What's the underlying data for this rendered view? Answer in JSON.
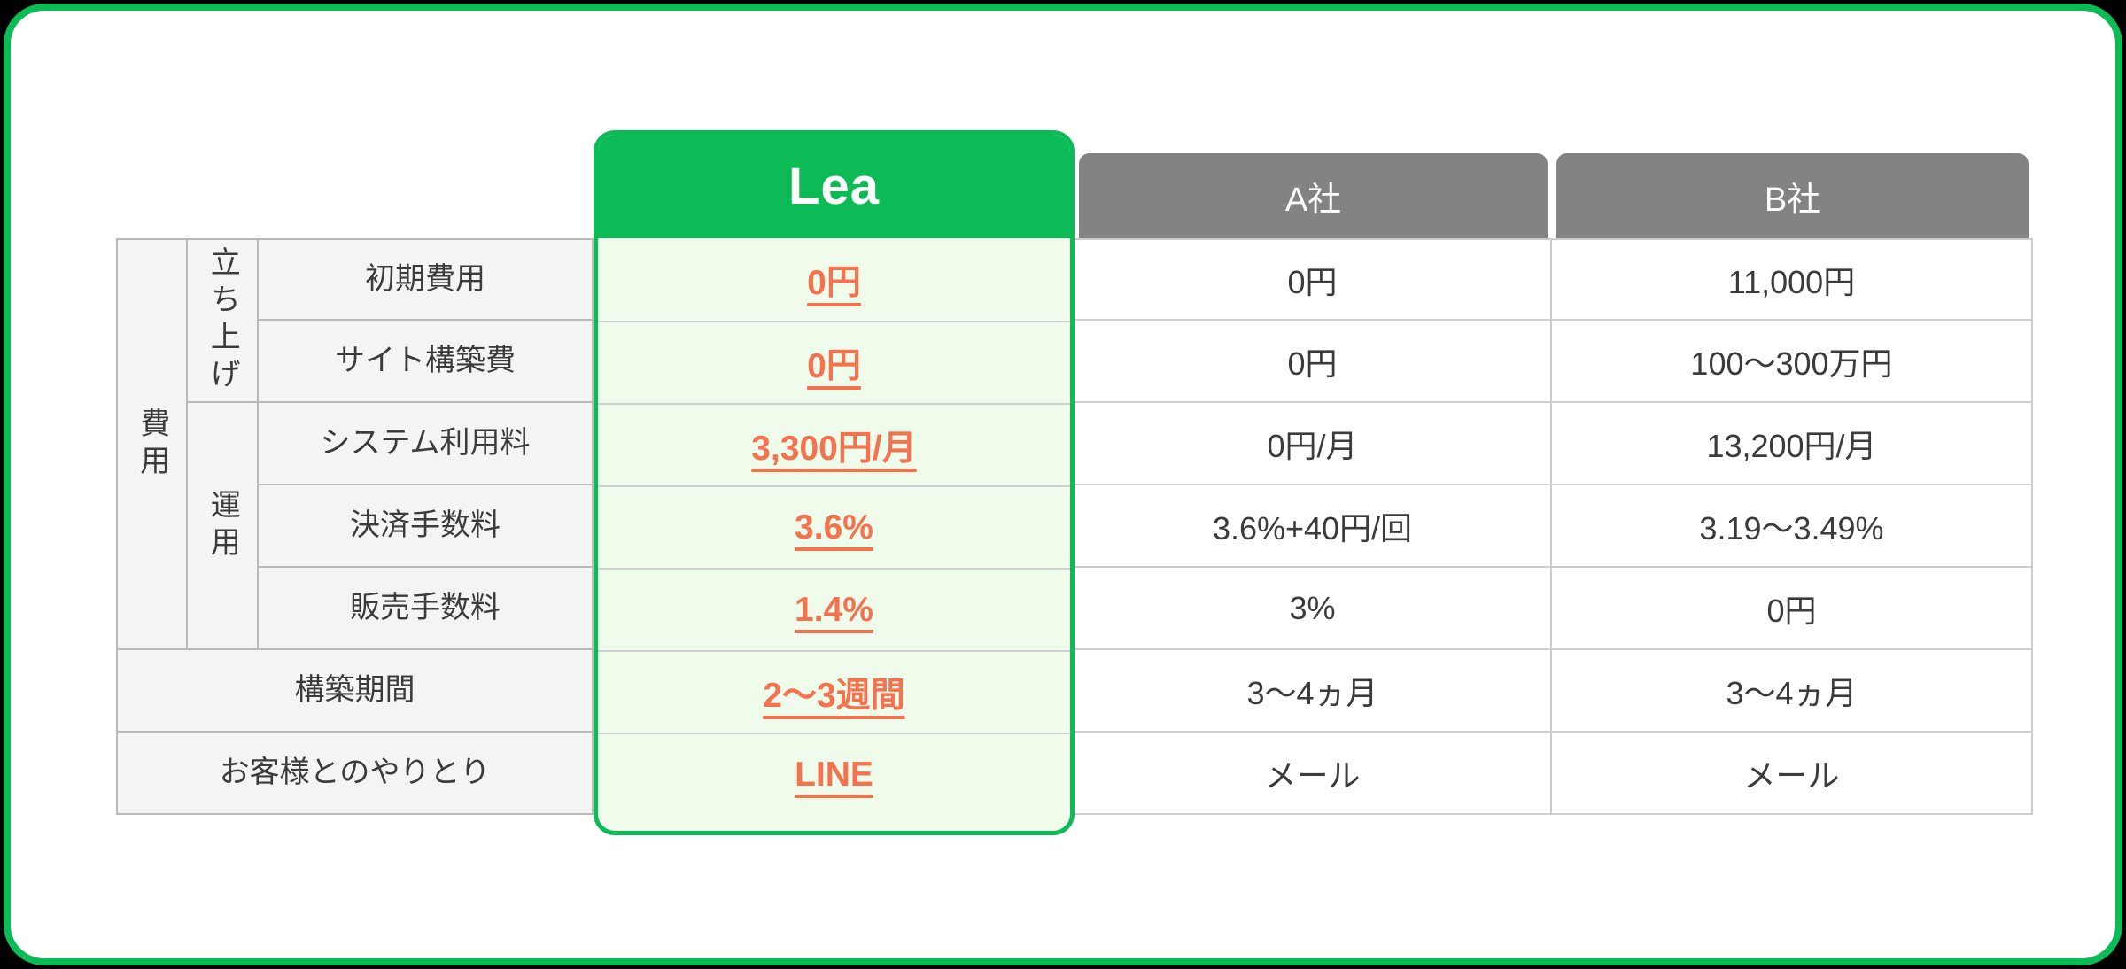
{
  "table": {
    "header": {
      "lea": "Lea",
      "company_a": "A社",
      "company_b": "B社"
    },
    "groups": {
      "cost": "費用",
      "launch": "立ち上げ",
      "operation": "運用"
    },
    "rows": [
      {
        "label": "初期費用",
        "lea": "0円",
        "company_a": "0円",
        "company_b": "11,000円"
      },
      {
        "label": "サイト構築費",
        "lea": "0円",
        "company_a": "0円",
        "company_b": "100〜300万円"
      },
      {
        "label": "システム利用料",
        "lea": "3,300円/月",
        "company_a": "0円/月",
        "company_b": "13,200円/月"
      },
      {
        "label": "決済手数料",
        "lea": "3.6%",
        "company_a": "3.6%+40円/回",
        "company_b": "3.19〜3.49%"
      },
      {
        "label": "販売手数料",
        "lea": "1.4%",
        "company_a": "3%",
        "company_b": "0円"
      },
      {
        "label": "構築期間",
        "lea": "2〜3週間",
        "company_a": "3〜4ヵ月",
        "company_b": "3〜4ヵ月"
      },
      {
        "label": "お客様とのやりとり",
        "lea": "LINE",
        "company_a": "メール",
        "company_b": "メール"
      }
    ],
    "colors": {
      "brand_green": "#0cbb56",
      "lea_cell_bg": "#effbeb",
      "highlight_orange": "#f4734e",
      "competitor_header_gray": "#838383",
      "label_bg": "#f4f4f5",
      "page_bg": "#000000"
    }
  }
}
